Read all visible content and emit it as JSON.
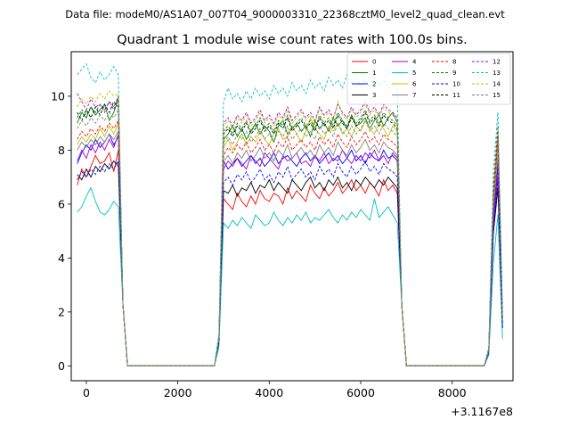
{
  "figure": {
    "suptitle": "Data file: modeM0/AS1A07_007T04_9000003310_22368cztM0_level2_quad_clean.evt"
  },
  "chart_data": {
    "type": "line",
    "title": "Quadrant 1 module wise count rates with 100.0s bins.",
    "xlabel": "",
    "ylabel": "",
    "x_offset_label": "+3.1167e8",
    "xlim": [
      -330,
      9330
    ],
    "ylim": [
      -0.55,
      11.65
    ],
    "x_ticks": [
      0,
      2000,
      4000,
      6000,
      8000
    ],
    "x_tick_labels": [
      "0",
      "2000",
      "4000",
      "6000",
      "8000"
    ],
    "y_ticks": [
      0,
      2,
      4,
      6,
      8,
      10
    ],
    "y_tick_labels": [
      "0",
      "2",
      "4",
      "6",
      "8",
      "10"
    ],
    "grid": false,
    "legend": {
      "position": "top-right",
      "columns": 4
    },
    "segments": [
      {
        "x_start": -200,
        "x_end": 700,
        "step": 100
      },
      {
        "x_start": 2900,
        "x_end": 6800,
        "step": 100
      },
      {
        "x_start": 8800,
        "x_end": 9100,
        "step": 100
      }
    ],
    "gap_x": [
      800,
      900,
      1000,
      1100,
      1200,
      1300,
      1400,
      1500,
      1600,
      1700,
      1800,
      1900,
      2000,
      2100,
      2200,
      2300,
      2400,
      2500,
      2600,
      2700,
      2800,
      6900,
      7000,
      7100,
      7200,
      7300,
      7400,
      7500,
      7600,
      7700,
      7800,
      7900,
      8000,
      8100,
      8200,
      8300,
      8400,
      8500,
      8600,
      8700
    ],
    "gap_values_note_free": [
      2.3,
      0,
      0,
      0,
      0,
      0,
      0,
      0,
      0,
      0,
      0,
      0,
      0,
      0,
      0,
      0,
      0,
      0,
      0,
      0,
      0,
      2.2,
      0,
      0,
      0,
      0,
      0,
      0,
      0,
      0,
      0,
      0,
      0,
      0,
      0,
      0,
      0,
      0,
      0,
      0
    ],
    "series": [
      {
        "name": "0",
        "color": "#ff0000",
        "dashed": false,
        "seg1": [
          6.7,
          7.3,
          7.0,
          7.4,
          7.8,
          7.5,
          7.6,
          7.9,
          7.2,
          8.0
        ],
        "seg2": [
          0.9,
          6.2,
          6.0,
          5.8,
          6.4,
          6.1,
          5.9,
          6.3,
          6.0,
          6.5,
          6.2,
          6.1,
          6.4,
          6.3,
          6.0,
          6.6,
          6.2,
          6.5,
          6.3,
          6.1,
          6.7,
          6.4,
          6.2,
          6.6,
          6.3,
          6.5,
          6.8,
          6.4,
          6.6,
          6.9,
          6.5,
          6.7,
          6.4,
          6.8,
          6.6,
          6.3,
          6.9,
          6.5,
          6.7,
          6.4
        ],
        "seg3": [
          0.5,
          5.0,
          7.0,
          1.5
        ]
      },
      {
        "name": "1",
        "color": "#008000",
        "dashed": false,
        "seg1": [
          9.0,
          9.4,
          9.2,
          9.6,
          9.3,
          9.5,
          9.7,
          9.1,
          9.4,
          9.9
        ],
        "seg2": [
          1.0,
          8.4,
          8.6,
          8.9,
          8.5,
          8.8,
          8.4,
          8.7,
          9.0,
          8.6,
          8.9,
          8.7,
          8.3,
          8.9,
          9.1,
          8.6,
          8.8,
          9.0,
          8.7,
          8.9,
          8.5,
          9.1,
          8.8,
          9.0,
          8.7,
          9.2,
          8.9,
          9.1,
          8.8,
          9.3,
          8.9,
          9.0,
          9.2,
          8.8,
          9.1,
          9.3,
          8.9,
          9.2,
          9.4,
          9.0
        ],
        "seg3": [
          0.6,
          5.8,
          8.5,
          1.7
        ]
      },
      {
        "name": "2",
        "color": "#0000ff",
        "dashed": false,
        "seg1": [
          7.5,
          7.9,
          8.2,
          8.0,
          8.4,
          8.1,
          8.3,
          8.6,
          8.2,
          8.5
        ],
        "seg2": [
          0.9,
          7.6,
          7.3,
          7.5,
          7.7,
          7.4,
          7.6,
          7.8,
          7.5,
          7.7,
          7.4,
          7.6,
          7.9,
          7.5,
          7.7,
          7.8,
          7.6,
          7.4,
          7.7,
          7.9,
          7.6,
          7.8,
          7.5,
          7.7,
          7.9,
          7.6,
          7.8,
          7.5,
          7.7,
          8.0,
          7.6,
          7.8,
          7.5,
          7.9,
          7.7,
          7.6,
          8.0,
          7.7,
          7.8,
          7.6
        ],
        "seg3": [
          0.5,
          5.5,
          7.5,
          1.6
        ]
      },
      {
        "name": "3",
        "color": "#000000",
        "dashed": false,
        "seg1": [
          7.1,
          6.9,
          7.3,
          7.0,
          7.4,
          7.2,
          7.5,
          7.3,
          7.6,
          7.4
        ],
        "seg2": [
          0.9,
          6.5,
          6.4,
          6.7,
          6.3,
          6.6,
          6.5,
          6.8,
          6.4,
          6.7,
          6.6,
          6.9,
          6.5,
          6.8,
          6.6,
          6.4,
          6.9,
          6.7,
          6.5,
          6.8,
          7.0,
          6.6,
          6.8,
          6.5,
          6.9,
          6.7,
          7.0,
          6.6,
          6.8,
          6.5,
          6.9,
          6.7,
          7.0,
          6.8,
          6.6,
          6.9,
          6.7,
          7.0,
          6.8,
          6.6
        ],
        "seg3": [
          0.5,
          4.9,
          6.6,
          1.4
        ]
      },
      {
        "name": "4",
        "color": "#aa00cc",
        "dashed": false,
        "seg1": [
          7.6,
          8.0,
          7.7,
          8.2,
          7.9,
          8.3,
          8.0,
          8.4,
          8.1,
          8.6
        ],
        "seg2": [
          1.0,
          7.3,
          7.6,
          7.4,
          7.7,
          7.5,
          7.3,
          7.8,
          7.6,
          7.4,
          7.9,
          7.7,
          7.5,
          7.3,
          7.8,
          7.6,
          7.7,
          7.9,
          7.5,
          7.6,
          7.4,
          7.8,
          7.6,
          7.9,
          7.5,
          7.7,
          7.6,
          8.0,
          7.7,
          7.5,
          7.8,
          7.6,
          7.9,
          7.7,
          8.0,
          7.6,
          7.8,
          7.5,
          7.9,
          7.7
        ],
        "seg3": [
          0.5,
          5.2,
          7.2,
          1.5
        ]
      },
      {
        "name": "5",
        "color": "#00bfbf",
        "dashed": false,
        "seg1": [
          5.7,
          5.9,
          6.3,
          6.6,
          6.1,
          5.7,
          5.6,
          5.8,
          6.1,
          5.9
        ],
        "seg2": [
          0.7,
          5.3,
          5.1,
          5.4,
          5.2,
          5.5,
          5.3,
          5.1,
          5.6,
          5.4,
          5.2,
          5.3,
          5.7,
          5.4,
          5.2,
          5.5,
          5.3,
          5.6,
          5.4,
          5.7,
          5.3,
          5.5,
          5.4,
          5.6,
          5.8,
          5.5,
          5.3,
          5.6,
          5.4,
          5.7,
          5.5,
          5.8,
          5.6,
          5.4,
          6.2,
          5.5,
          5.7,
          5.9,
          5.6,
          5.3
        ],
        "seg3": [
          0.4,
          3.8,
          5.6,
          1.0
        ]
      },
      {
        "name": "6",
        "color": "#bfbf00",
        "dashed": false,
        "seg1": [
          8.2,
          8.5,
          8.3,
          8.6,
          8.4,
          8.8,
          8.5,
          8.9,
          8.6,
          9.0
        ],
        "seg2": [
          1.0,
          8.1,
          8.4,
          8.0,
          8.3,
          8.6,
          8.2,
          8.5,
          8.3,
          8.7,
          8.4,
          8.2,
          8.6,
          8.8,
          8.4,
          8.5,
          8.9,
          8.6,
          8.3,
          8.7,
          9.2,
          8.8,
          8.6,
          8.4,
          8.9,
          8.7,
          9.0,
          8.6,
          8.8,
          8.5,
          8.9,
          8.7,
          9.1,
          8.8,
          8.6,
          9.0,
          8.8,
          8.5,
          8.9,
          8.7
        ],
        "seg3": [
          0.6,
          6.0,
          8.2,
          1.8
        ]
      },
      {
        "name": "7",
        "color": "#808080",
        "dashed": false,
        "seg1": [
          8.0,
          8.3,
          8.1,
          8.4,
          8.2,
          8.5,
          8.3,
          8.6,
          8.4,
          8.7
        ],
        "seg2": [
          1.0,
          7.6,
          7.8,
          7.5,
          7.9,
          7.7,
          8.0,
          7.6,
          7.8,
          8.1,
          7.7,
          7.9,
          7.6,
          8.0,
          7.8,
          8.2,
          7.7,
          7.9,
          8.1,
          7.8,
          8.0,
          7.7,
          8.2,
          7.9,
          8.1,
          7.8,
          8.3,
          8.0,
          7.8,
          8.2,
          7.9,
          8.1,
          8.4,
          8.0,
          8.2,
          7.9,
          8.3,
          8.1,
          8.0,
          7.8
        ],
        "seg3": [
          0.5,
          5.7,
          7.8,
          1.6
        ]
      },
      {
        "name": "8",
        "color": "#ff0000",
        "dashed": true,
        "seg1": [
          8.4,
          8.7,
          8.5,
          8.8,
          8.6,
          8.9,
          8.7,
          9.0,
          8.8,
          9.1
        ],
        "seg2": [
          1.1,
          7.8,
          8.1,
          7.9,
          8.2,
          8.0,
          8.3,
          7.9,
          8.1,
          8.4,
          8.0,
          8.2,
          7.9,
          8.3,
          8.1,
          8.5,
          8.0,
          8.2,
          8.4,
          8.1,
          8.3,
          8.0,
          8.5,
          8.2,
          8.4,
          8.1,
          8.6,
          8.3,
          8.1,
          8.5,
          8.2,
          8.4,
          8.7,
          8.3,
          8.5,
          8.2,
          8.6,
          8.4,
          8.3,
          8.1
        ],
        "seg3": [
          0.6,
          6.1,
          8.3,
          1.7
        ]
      },
      {
        "name": "9",
        "color": "#008000",
        "dashed": true,
        "seg1": [
          9.2,
          9.5,
          9.3,
          9.6,
          9.4,
          9.7,
          9.5,
          9.8,
          9.6,
          10.0
        ],
        "seg2": [
          1.1,
          8.7,
          8.9,
          8.6,
          9.0,
          8.8,
          9.1,
          8.7,
          8.9,
          9.2,
          8.8,
          9.0,
          8.7,
          9.1,
          8.9,
          9.3,
          8.8,
          9.0,
          9.2,
          8.9,
          9.1,
          8.8,
          9.3,
          9.0,
          9.2,
          8.9,
          9.4,
          9.1,
          8.9,
          9.3,
          9.0,
          9.2,
          9.5,
          9.1,
          9.3,
          9.0,
          9.4,
          9.2,
          9.1,
          8.9
        ],
        "seg3": [
          0.6,
          6.4,
          8.7,
          1.8
        ]
      },
      {
        "name": "10",
        "color": "#0000ff",
        "dashed": true,
        "seg1": [
          6.9,
          7.2,
          7.0,
          7.3,
          7.1,
          7.4,
          7.2,
          7.5,
          7.3,
          7.6
        ],
        "seg2": [
          0.9,
          6.8,
          7.0,
          6.7,
          7.1,
          6.9,
          7.2,
          6.8,
          7.0,
          7.3,
          6.9,
          7.1,
          6.8,
          7.2,
          7.0,
          7.4,
          6.9,
          7.1,
          7.3,
          7.0,
          7.2,
          6.9,
          7.4,
          7.1,
          7.3,
          7.0,
          7.5,
          7.2,
          7.0,
          7.4,
          7.1,
          7.3,
          7.6,
          7.2,
          7.4,
          7.1,
          7.5,
          7.3,
          7.2,
          7.0
        ],
        "seg3": [
          0.5,
          5.1,
          6.9,
          1.4
        ]
      },
      {
        "name": "11",
        "color": "#000000",
        "dashed": true,
        "seg1": [
          9.4,
          9.1,
          9.5,
          9.2,
          9.6,
          9.3,
          9.7,
          9.4,
          9.8,
          9.6
        ],
        "seg2": [
          1.0,
          8.6,
          8.8,
          8.5,
          8.9,
          8.7,
          9.0,
          8.6,
          8.8,
          9.1,
          8.7,
          8.9,
          8.6,
          9.0,
          8.8,
          9.2,
          8.7,
          8.9,
          9.1,
          8.8,
          9.0,
          8.7,
          9.2,
          8.9,
          9.1,
          8.8,
          9.3,
          9.0,
          8.8,
          9.2,
          8.9,
          9.1,
          9.4,
          9.0,
          9.2,
          8.9,
          9.3,
          9.1,
          9.0,
          8.8
        ],
        "seg3": [
          0.6,
          6.3,
          8.6,
          1.7
        ]
      },
      {
        "name": "12",
        "color": "#aa00cc",
        "dashed": true,
        "seg1": [
          10.1,
          9.8,
          9.5,
          9.9,
          9.6,
          9.7,
          9.4,
          9.8,
          9.5,
          10.0
        ],
        "seg2": [
          1.1,
          9.0,
          9.2,
          8.9,
          9.3,
          9.1,
          9.4,
          9.0,
          9.2,
          9.5,
          9.1,
          9.3,
          9.0,
          9.4,
          9.2,
          9.6,
          9.1,
          9.3,
          9.5,
          9.2,
          9.4,
          9.1,
          9.6,
          9.3,
          9.5,
          9.2,
          9.7,
          9.4,
          9.2,
          9.6,
          9.3,
          9.5,
          9.8,
          9.4,
          9.6,
          9.3,
          9.7,
          9.5,
          9.4,
          9.2
        ],
        "seg3": [
          0.6,
          6.6,
          8.9,
          1.9
        ]
      },
      {
        "name": "13",
        "color": "#00bfbf",
        "dashed": true,
        "seg1": [
          10.8,
          11.0,
          11.2,
          10.7,
          10.5,
          10.9,
          10.6,
          10.8,
          11.1,
          10.8
        ],
        "seg2": [
          1.2,
          9.8,
          10.3,
          9.9,
          10.1,
          9.8,
          10.2,
          9.9,
          10.3,
          10.0,
          10.2,
          9.9,
          10.4,
          10.1,
          10.3,
          10.0,
          10.5,
          10.2,
          10.4,
          10.1,
          10.6,
          10.3,
          10.5,
          10.2,
          10.7,
          10.4,
          10.6,
          10.3,
          10.8,
          10.5,
          10.7,
          10.4,
          10.6,
          10.3,
          10.7,
          10.4,
          10.6,
          10.3,
          10.5,
          10.2
        ],
        "seg3": [
          0.7,
          7.2,
          9.4,
          2.0
        ]
      },
      {
        "name": "14",
        "color": "#bfbf00",
        "dashed": true,
        "seg1": [
          9.6,
          9.9,
          9.7,
          10.0,
          9.8,
          10.1,
          9.9,
          10.2,
          10.0,
          10.1
        ],
        "seg2": [
          1.1,
          8.9,
          9.1,
          8.8,
          9.2,
          9.0,
          9.3,
          8.9,
          9.1,
          9.4,
          9.0,
          9.2,
          8.9,
          9.3,
          9.1,
          9.5,
          9.0,
          9.2,
          9.4,
          9.1,
          9.3,
          9.0,
          9.5,
          9.2,
          9.4,
          9.1,
          9.8,
          9.3,
          9.1,
          9.5,
          9.2,
          9.4,
          9.7,
          9.3,
          9.5,
          9.2,
          9.6,
          9.4,
          9.3,
          9.1
        ],
        "seg3": [
          0.6,
          6.5,
          8.8,
          1.8
        ]
      },
      {
        "name": "15",
        "color": "#808080",
        "dashed": true,
        "seg1": [
          8.8,
          9.1,
          8.9,
          9.2,
          9.0,
          9.3,
          9.1,
          9.4,
          9.2,
          9.5
        ],
        "seg2": [
          1.0,
          8.3,
          8.5,
          8.2,
          8.6,
          8.4,
          8.7,
          8.3,
          8.5,
          8.8,
          8.4,
          8.6,
          8.3,
          8.7,
          8.5,
          8.9,
          8.4,
          8.6,
          8.8,
          8.5,
          8.7,
          8.4,
          8.9,
          8.6,
          8.8,
          8.5,
          9.0,
          8.7,
          8.5,
          8.9,
          8.6,
          8.8,
          9.1,
          8.7,
          8.9,
          8.6,
          9.0,
          8.8,
          8.7,
          8.5
        ],
        "seg3": [
          0.6,
          6.2,
          8.4,
          1.7
        ]
      }
    ]
  }
}
